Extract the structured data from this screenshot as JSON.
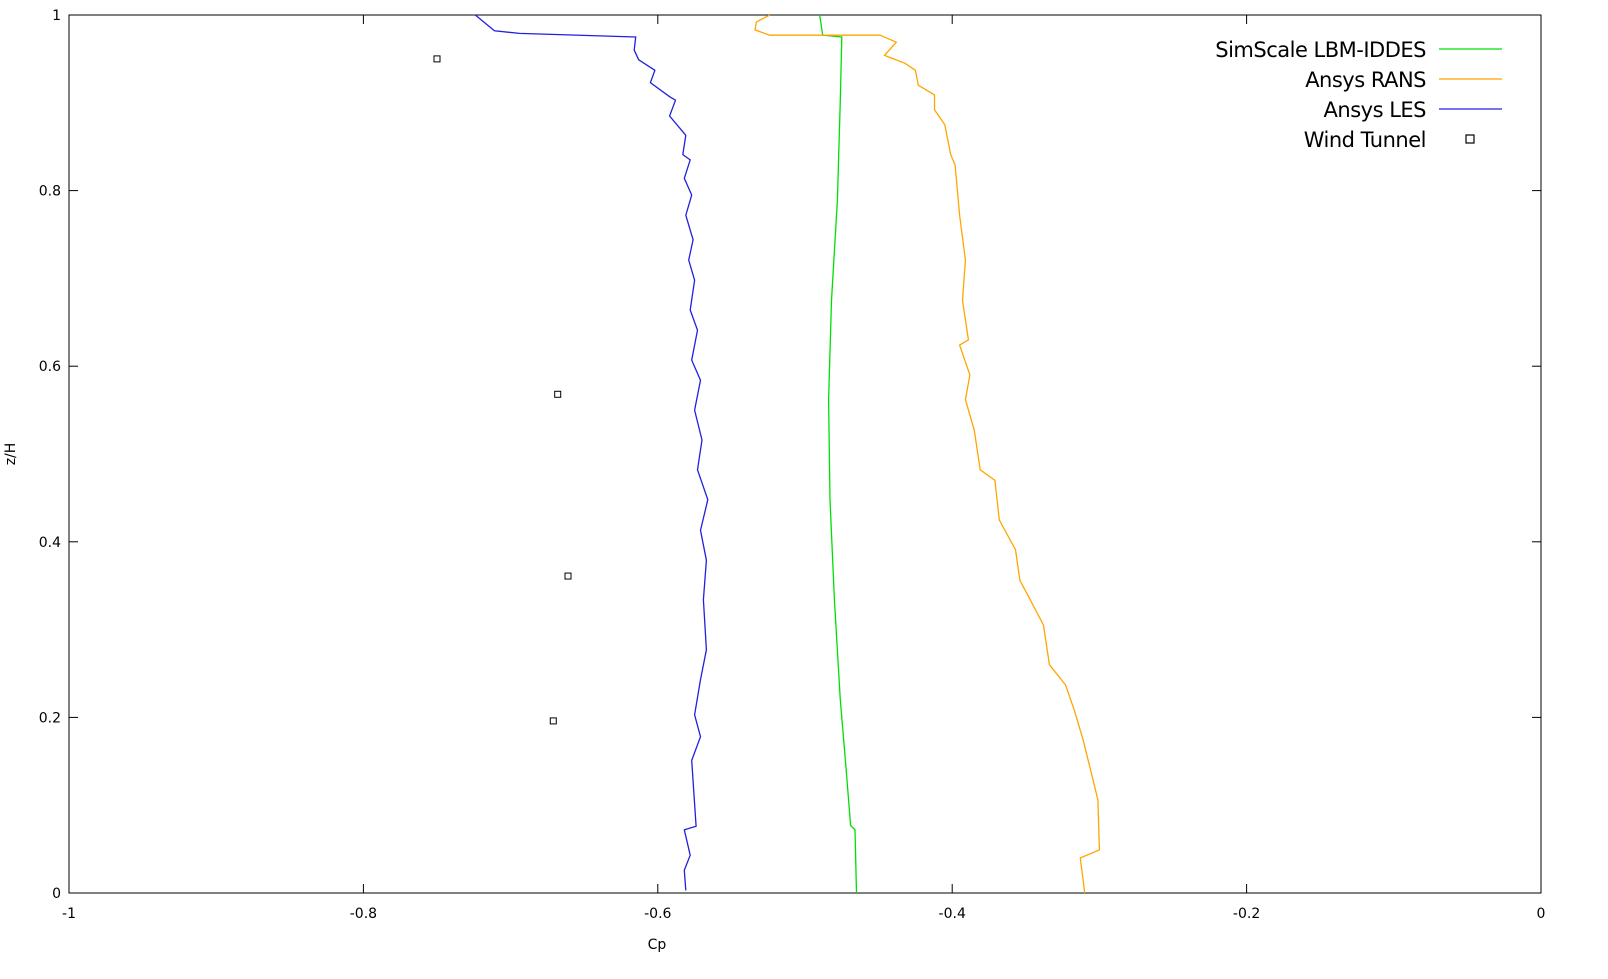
{
  "chart_data": {
    "type": "line",
    "title": "",
    "xlabel": "Cp",
    "ylabel": "z/H",
    "xlim": [
      -1,
      0
    ],
    "ylim": [
      0,
      1
    ],
    "grid": false,
    "legend_placement": "top-right",
    "xticks": [
      -1,
      -0.8,
      -0.6,
      -0.4,
      -0.2,
      0
    ],
    "yticks": [
      0,
      0.2,
      0.4,
      0.6,
      0.8,
      1
    ],
    "xtick_labels": [
      "-1",
      "-0.8",
      "-0.6",
      "-0.4",
      "-0.2",
      "0"
    ],
    "ytick_labels": [
      "0",
      "0.2",
      "0.4",
      "0.6",
      "0.8",
      "1"
    ],
    "series": [
      {
        "name": "SimScale LBM-IDDES",
        "style": "line",
        "color": "#00e000",
        "points": [
          [
            -0.49,
            1.0
          ],
          [
            -0.488,
            0.977
          ],
          [
            -0.475,
            0.975
          ],
          [
            -0.476,
            0.903
          ],
          [
            -0.478,
            0.789
          ],
          [
            -0.482,
            0.675
          ],
          [
            -0.484,
            0.562
          ],
          [
            -0.483,
            0.448
          ],
          [
            -0.48,
            0.334
          ],
          [
            -0.476,
            0.22
          ],
          [
            -0.472,
            0.14
          ],
          [
            -0.469,
            0.077
          ],
          [
            -0.466,
            0.072
          ],
          [
            -0.465,
            0.0
          ]
        ]
      },
      {
        "name": "Ansys RANS",
        "style": "line",
        "color": "#ffa500",
        "points": [
          [
            -0.524,
            1.0
          ],
          [
            -0.533,
            0.992
          ],
          [
            -0.534,
            0.983
          ],
          [
            -0.524,
            0.977
          ],
          [
            -0.449,
            0.977
          ],
          [
            -0.438,
            0.969
          ],
          [
            -0.446,
            0.954
          ],
          [
            -0.432,
            0.945
          ],
          [
            -0.425,
            0.937
          ],
          [
            -0.423,
            0.92
          ],
          [
            -0.412,
            0.909
          ],
          [
            -0.412,
            0.892
          ],
          [
            -0.405,
            0.875
          ],
          [
            -0.401,
            0.841
          ],
          [
            -0.398,
            0.829
          ],
          [
            -0.395,
            0.772
          ],
          [
            -0.391,
            0.721
          ],
          [
            -0.393,
            0.675
          ],
          [
            -0.389,
            0.63
          ],
          [
            -0.395,
            0.624
          ],
          [
            -0.388,
            0.59
          ],
          [
            -0.391,
            0.562
          ],
          [
            -0.385,
            0.527
          ],
          [
            -0.381,
            0.482
          ],
          [
            -0.371,
            0.47
          ],
          [
            -0.368,
            0.425
          ],
          [
            -0.357,
            0.391
          ],
          [
            -0.354,
            0.356
          ],
          [
            -0.347,
            0.334
          ],
          [
            -0.338,
            0.305
          ],
          [
            -0.334,
            0.26
          ],
          [
            -0.323,
            0.237
          ],
          [
            -0.317,
            0.208
          ],
          [
            -0.311,
            0.174
          ],
          [
            -0.306,
            0.14
          ],
          [
            -0.301,
            0.106
          ],
          [
            -0.3,
            0.049
          ],
          [
            -0.313,
            0.04
          ],
          [
            -0.31,
            0.0
          ]
        ]
      },
      {
        "name": "Ansys LES",
        "style": "line",
        "color": "#2020e0",
        "points": [
          [
            -0.724,
            1.0
          ],
          [
            -0.711,
            0.982
          ],
          [
            -0.694,
            0.979
          ],
          [
            -0.615,
            0.975
          ],
          [
            -0.616,
            0.96
          ],
          [
            -0.613,
            0.949
          ],
          [
            -0.602,
            0.937
          ],
          [
            -0.605,
            0.923
          ],
          [
            -0.592,
            0.907
          ],
          [
            -0.588,
            0.903
          ],
          [
            -0.592,
            0.885
          ],
          [
            -0.581,
            0.863
          ],
          [
            -0.583,
            0.841
          ],
          [
            -0.578,
            0.835
          ],
          [
            -0.582,
            0.814
          ],
          [
            -0.577,
            0.795
          ],
          [
            -0.581,
            0.772
          ],
          [
            -0.576,
            0.744
          ],
          [
            -0.579,
            0.721
          ],
          [
            -0.575,
            0.698
          ],
          [
            -0.578,
            0.664
          ],
          [
            -0.573,
            0.641
          ],
          [
            -0.577,
            0.607
          ],
          [
            -0.571,
            0.584
          ],
          [
            -0.575,
            0.55
          ],
          [
            -0.57,
            0.516
          ],
          [
            -0.573,
            0.482
          ],
          [
            -0.566,
            0.448
          ],
          [
            -0.571,
            0.413
          ],
          [
            -0.567,
            0.379
          ],
          [
            -0.569,
            0.334
          ],
          [
            -0.567,
            0.277
          ],
          [
            -0.571,
            0.243
          ],
          [
            -0.575,
            0.203
          ],
          [
            -0.571,
            0.178
          ],
          [
            -0.577,
            0.151
          ],
          [
            -0.574,
            0.076
          ],
          [
            -0.582,
            0.072
          ],
          [
            -0.578,
            0.043
          ],
          [
            -0.582,
            0.026
          ],
          [
            -0.581,
            0.003
          ]
        ]
      },
      {
        "name": "Wind Tunnel",
        "style": "points",
        "marker": "open-square",
        "color": "#000000",
        "points": [
          [
            -0.75,
            0.95
          ],
          [
            -0.668,
            0.568
          ],
          [
            -0.661,
            0.361
          ],
          [
            -0.671,
            0.196
          ]
        ]
      }
    ]
  }
}
